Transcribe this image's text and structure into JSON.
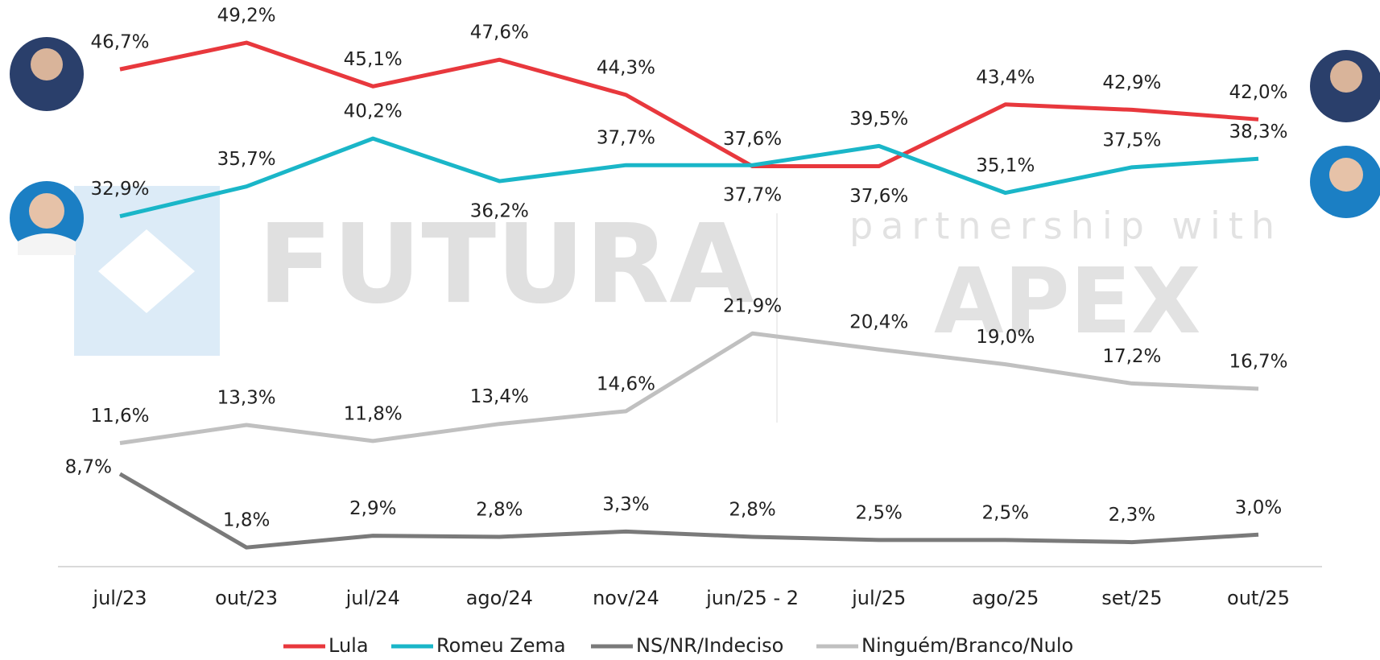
{
  "watermark": {
    "brand": "FUTURA",
    "tagline": "partnership with",
    "partner": "APEX"
  },
  "chart_data": {
    "type": "line",
    "categories": [
      "jul/23",
      "out/23",
      "jul/24",
      "ago/24",
      "nov/24",
      "jun/25 - 2",
      "jul/25",
      "ago/25",
      "set/25",
      "out/25"
    ],
    "ylim": [
      0,
      52
    ],
    "series": [
      {
        "name": "Lula",
        "color": "#e8383d",
        "values": [
          46.7,
          49.2,
          45.1,
          47.6,
          44.3,
          37.6,
          37.6,
          43.4,
          42.9,
          42.0
        ],
        "value_labels": [
          "46,7%",
          "49,2%",
          "45,1%",
          "47,6%",
          "44,3%",
          "37,6%",
          "37,6%",
          "43,4%",
          "42,9%",
          "42,0%"
        ]
      },
      {
        "name": "Romeu Zema",
        "color": "#1ab6c8",
        "values": [
          32.9,
          35.7,
          40.2,
          36.2,
          37.7,
          37.7,
          39.5,
          35.1,
          37.5,
          38.3
        ],
        "value_labels": [
          "32,9%",
          "35,7%",
          "40,2%",
          "36,2%",
          "37,7%",
          "37,7%",
          "39,5%",
          "35,1%",
          "37,5%",
          "38,3%"
        ]
      },
      {
        "name": "NS/NR/Indeciso",
        "color": "#7a7a7a",
        "values": [
          8.7,
          1.8,
          2.9,
          2.8,
          3.3,
          2.8,
          2.5,
          2.5,
          2.3,
          3.0
        ],
        "value_labels": [
          "8,7%",
          "1,8%",
          "2,9%",
          "2,8%",
          "3,3%",
          "2,8%",
          "2,5%",
          "2,5%",
          "2,3%",
          "3,0%"
        ]
      },
      {
        "name": "Ninguém/Branco/Nulo",
        "color": "#c0c0c0",
        "values": [
          11.6,
          13.3,
          11.8,
          13.4,
          14.6,
          21.9,
          20.4,
          19.0,
          17.2,
          16.7
        ],
        "value_labels": [
          "11,6%",
          "13,3%",
          "11,8%",
          "13,4%",
          "14,6%",
          "21,9%",
          "20,4%",
          "19,0%",
          "17,2%",
          "16,7%"
        ]
      }
    ]
  }
}
